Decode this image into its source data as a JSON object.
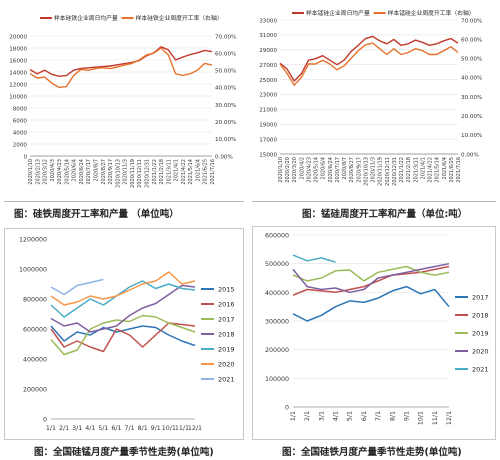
{
  "captions": {
    "c1": "图：硅铁周度开工率和产量 （单位吨）",
    "c2": "图：锰硅周度开工率和产量（单位:吨）",
    "c3": "图：全国硅锰月度产量季节性走势(单位吨)",
    "c4": "图：全国硅铁月度产量季节性走势(单位吨)"
  },
  "chart_data": [
    {
      "type": "line",
      "title": "",
      "legend_position": "top",
      "grid": true,
      "x": [
        "2020/1/10",
        "2020/2/13",
        "2020/3/12",
        "2020/4/3",
        "2020/4/23",
        "2020/5/14",
        "2020/6/4",
        "2020/6/24",
        "2020/7/17",
        "2020/8/7",
        "2020/8/27",
        "2020/9/17",
        "2020/10/13",
        "2020/11/3",
        "2020/11/19",
        "2020/12/11",
        "2020/12/31",
        "2021/1/22",
        "2021/2/18",
        "2021/3/11",
        "2021/4/1",
        "2021/4/22",
        "2021/5/14",
        "2021/6/4",
        "2021/6/25",
        "2021/7/16"
      ],
      "y_left_lim": [
        0,
        20000
      ],
      "y_left_ticks": [
        "0",
        "2000",
        "4000",
        "6000",
        "8000",
        "10000",
        "12000",
        "14000",
        "16000",
        "18000",
        "20000"
      ],
      "y_right_lim": [
        0,
        70
      ],
      "y_right_ticks": [
        "0.00%",
        "10.00%",
        "20.00%",
        "30.00%",
        "40.00%",
        "50.00%",
        "60.00%",
        "70.00%"
      ],
      "series": [
        {
          "name": "样本硅铁企业周日均产量",
          "axis": "left",
          "color": "#c0392b",
          "values": [
            14400,
            13700,
            14300,
            13600,
            13300,
            13400,
            14300,
            14600,
            14700,
            14800,
            14900,
            15000,
            15200,
            15400,
            15600,
            15900,
            16700,
            17200,
            18200,
            17700,
            16000,
            16500,
            16900,
            17200,
            17600,
            17400
          ]
        },
        {
          "name": "样本硅铁企业周度开工率（右轴）",
          "axis": "right",
          "color": "#e8722b",
          "values": [
            48,
            45.5,
            46,
            42.5,
            40,
            40.5,
            47,
            50.5,
            50,
            51,
            51.5,
            51,
            52,
            53,
            54,
            56,
            59,
            60,
            63,
            59,
            48,
            47,
            48,
            50,
            54,
            53
          ]
        }
      ]
    },
    {
      "type": "line",
      "title": "",
      "legend_position": "top",
      "grid": true,
      "x": [
        "2020/1/10",
        "2020/2/20",
        "2020/3/20",
        "2020/4/2",
        "2020/4/23",
        "2020/5/14",
        "2020/6/4",
        "2020/6/24",
        "2020/7/17",
        "2020/8/7",
        "2020/8/27",
        "2020/9/17",
        "2020/10/13",
        "2020/11/3",
        "2020/11/19",
        "2020/12/11",
        "2020/12/31",
        "2021/1/22",
        "2021/2/18",
        "2021/3/11",
        "2021/4/1",
        "2021/4/22",
        "2021/5/14",
        "2021/6/4",
        "2021/6/25",
        "2021/7/16"
      ],
      "y_left_lim": [
        15000,
        33000
      ],
      "y_left_ticks": [
        "15000",
        "17000",
        "19000",
        "21000",
        "23000",
        "25000",
        "27000",
        "29000",
        "31000",
        "33000"
      ],
      "y_right_lim": [
        0,
        70
      ],
      "y_right_ticks": [
        "0.00%",
        "10.00%",
        "20.00%",
        "30.00%",
        "40.00%",
        "50.00%",
        "60.00%",
        "70.00%"
      ],
      "series": [
        {
          "name": "样本锰硅企业周日均产量",
          "axis": "left",
          "color": "#c0392b",
          "values": [
            27200,
            26400,
            24800,
            25800,
            27600,
            27800,
            28200,
            27600,
            27000,
            27600,
            28800,
            29600,
            30500,
            30800,
            30200,
            29800,
            30400,
            29600,
            29800,
            30300,
            30000,
            29600,
            29800,
            30200,
            30500,
            29900
          ]
        },
        {
          "name": "样本锰硅企业周度开工率（右轴）",
          "axis": "right",
          "color": "#e8722b",
          "values": [
            47,
            42,
            36,
            40,
            47,
            47,
            49,
            47,
            44,
            46,
            50,
            54,
            57,
            58,
            55,
            52,
            55,
            52,
            53,
            55,
            54,
            52,
            52,
            54,
            56,
            53
          ]
        }
      ]
    },
    {
      "type": "line",
      "title": "",
      "legend_position": "right",
      "grid": false,
      "categories": [
        "1/1",
        "2/1",
        "3/1",
        "4/1",
        "5/1",
        "6/1",
        "7/1",
        "8/1",
        "9/1",
        "10/1",
        "11/1",
        "12/1"
      ],
      "ylim": [
        0,
        1200000
      ],
      "y_ticks": [
        "0",
        "200000",
        "400000",
        "600000",
        "800000",
        "1000000",
        "1200000"
      ],
      "series": [
        {
          "name": "2015",
          "color": "#2e75b6",
          "values": [
            620000,
            520000,
            580000,
            560000,
            610000,
            580000,
            600000,
            620000,
            610000,
            560000,
            520000,
            490000
          ]
        },
        {
          "name": "2016",
          "color": "#c0504d",
          "values": [
            600000,
            480000,
            520000,
            480000,
            450000,
            600000,
            560000,
            480000,
            560000,
            640000,
            630000,
            620000
          ]
        },
        {
          "name": "2017",
          "color": "#9bbb59",
          "values": [
            530000,
            430000,
            460000,
            600000,
            640000,
            660000,
            650000,
            690000,
            680000,
            640000,
            610000,
            580000
          ]
        },
        {
          "name": "2018",
          "color": "#7f5fa0",
          "values": [
            670000,
            620000,
            640000,
            580000,
            600000,
            620000,
            690000,
            740000,
            770000,
            830000,
            890000,
            880000
          ]
        },
        {
          "name": "2019",
          "color": "#4bacc6",
          "values": [
            760000,
            680000,
            740000,
            800000,
            760000,
            820000,
            880000,
            920000,
            870000,
            900000,
            870000,
            860000
          ]
        },
        {
          "name": "2020",
          "color": "#f79646",
          "values": [
            820000,
            760000,
            780000,
            820000,
            800000,
            820000,
            860000,
            900000,
            920000,
            980000,
            900000,
            920000
          ]
        },
        {
          "name": "2021",
          "color": "#8eb4e3",
          "values": [
            880000,
            830000,
            890000,
            910000,
            930000,
            null,
            null,
            null,
            null,
            null,
            null,
            null
          ]
        }
      ]
    },
    {
      "type": "line",
      "title": "",
      "legend_position": "right",
      "grid": true,
      "categories": [
        "1/1",
        "2/1",
        "3/1",
        "4/1",
        "5/1",
        "6/1",
        "7/1",
        "8/1",
        "9/1",
        "10/1",
        "11/1",
        "12/1"
      ],
      "ylim": [
        0,
        600000
      ],
      "y_ticks": [
        "0",
        "100000",
        "200000",
        "300000",
        "400000",
        "500000",
        "600000"
      ],
      "series": [
        {
          "name": "2017",
          "color": "#2e75b6",
          "values": [
            325000,
            300000,
            320000,
            350000,
            370000,
            365000,
            380000,
            405000,
            420000,
            395000,
            410000,
            350000
          ]
        },
        {
          "name": "2018",
          "color": "#c0504d",
          "values": [
            390000,
            410000,
            405000,
            400000,
            410000,
            420000,
            440000,
            460000,
            465000,
            470000,
            480000,
            490000
          ]
        },
        {
          "name": "2019",
          "color": "#9bbb59",
          "values": [
            460000,
            440000,
            450000,
            475000,
            478000,
            440000,
            470000,
            480000,
            490000,
            470000,
            460000,
            470000
          ]
        },
        {
          "name": "2020",
          "color": "#7f5fa0",
          "values": [
            480000,
            420000,
            410000,
            415000,
            400000,
            410000,
            450000,
            460000,
            470000,
            480000,
            490000,
            500000
          ]
        },
        {
          "name": "2021",
          "color": "#4bacc6",
          "values": [
            530000,
            510000,
            520000,
            505000,
            null,
            null,
            null,
            null,
            null,
            null,
            null,
            null
          ]
        }
      ]
    }
  ]
}
